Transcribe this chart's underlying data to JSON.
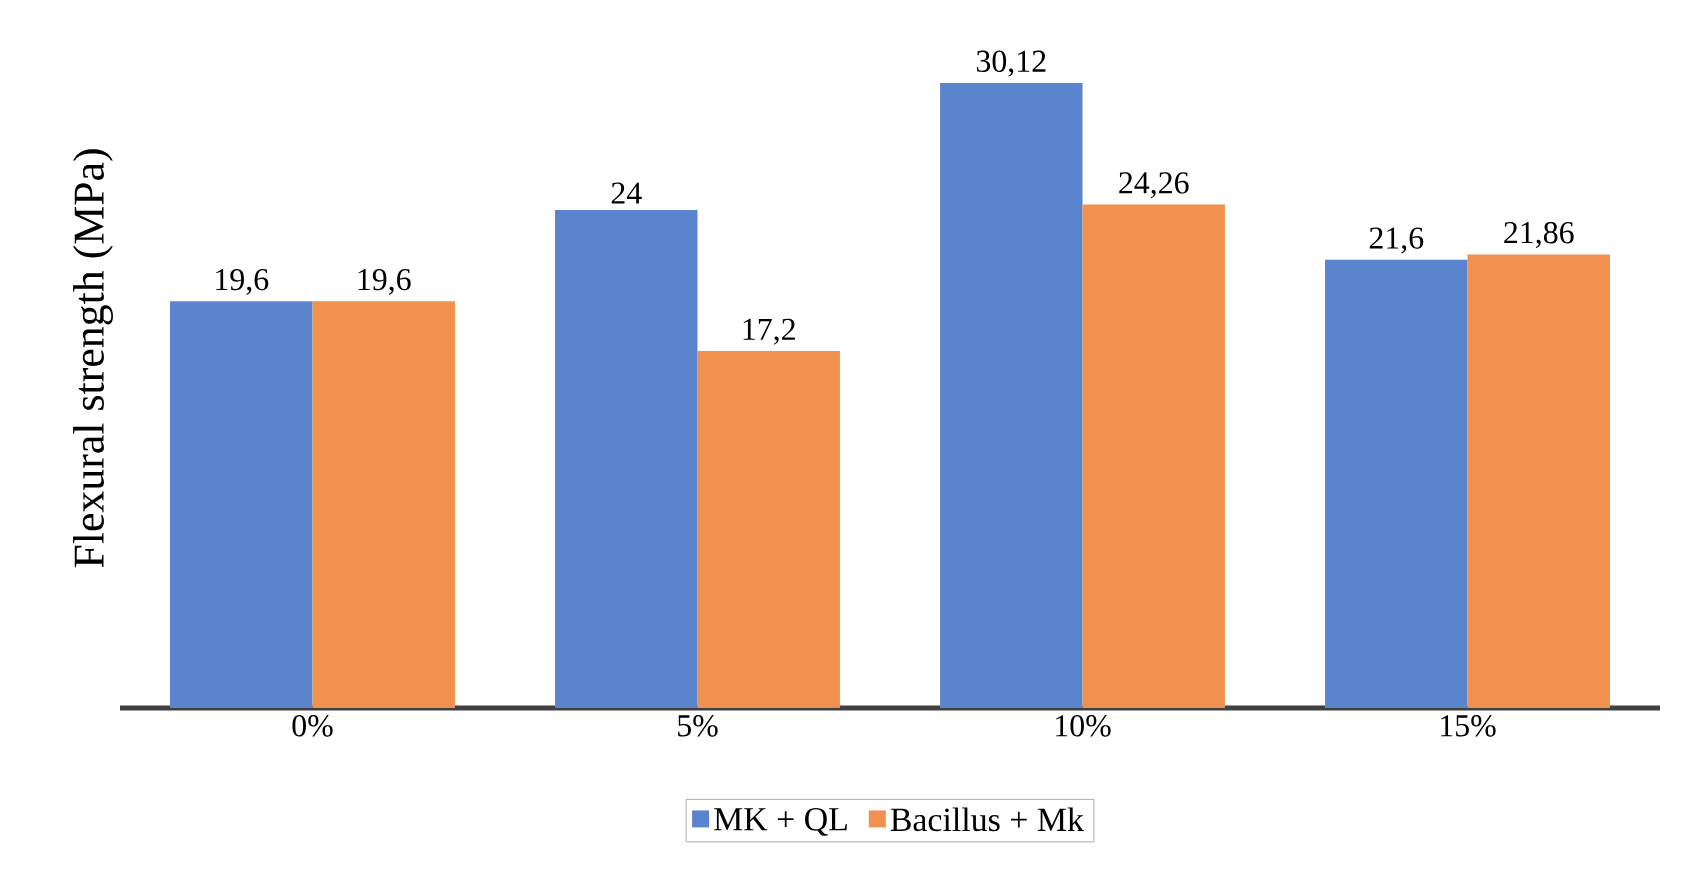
{
  "chart_data": {
    "type": "bar",
    "ylabel": "Flexural strength (MPa)",
    "categories": [
      "0%",
      "5%",
      "10%",
      "15%"
    ],
    "series": [
      {
        "name": "MK + QL",
        "color": "#5b84cf",
        "values": [
          19.6,
          24,
          30.12,
          21.6
        ],
        "value_labels": [
          "19,6",
          "24",
          "30,12",
          "21,6"
        ]
      },
      {
        "name": "Bacillus + Mk",
        "color": "#f0914f",
        "values": [
          19.6,
          17.2,
          24.26,
          21.86
        ],
        "value_labels": [
          "19,6",
          "17,2",
          "24,26",
          "21,86"
        ]
      }
    ],
    "legend": "bottom"
  }
}
